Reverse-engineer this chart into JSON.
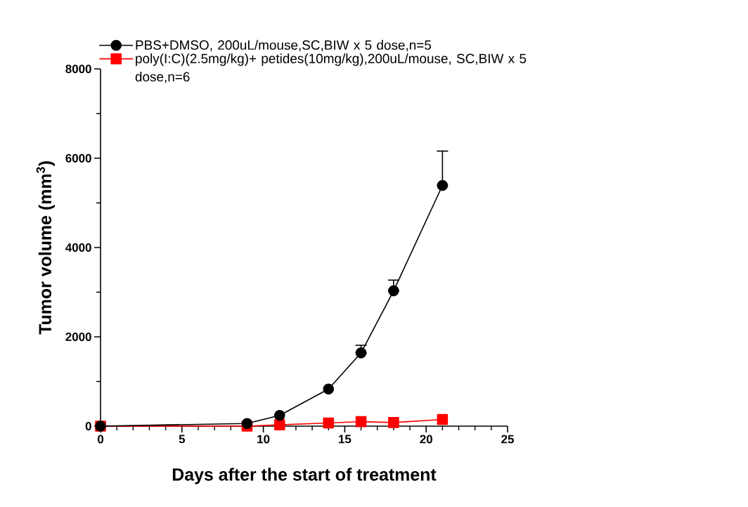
{
  "chart_data": {
    "type": "line",
    "xlabel": "Days after the start of treatment",
    "ylabel": "Tumor volume (mm$^{3}$)",
    "x": [
      0,
      9,
      11,
      14,
      16,
      18,
      21
    ],
    "series": [
      {
        "name": "PBS+DMSO, 200uL/mouse,SC,BIW x 5 dose,n=5",
        "color": "#000000",
        "marker": "circle",
        "values": [
          0,
          60,
          240,
          830,
          1640,
          3030,
          5390
        ],
        "errors": [
          null,
          null,
          null,
          null,
          [
            1640,
            1810
          ],
          [
            3030,
            3270
          ],
          [
            5390,
            6160
          ]
        ]
      },
      {
        "name": "poly(I:C)(2.5mg/kg)+ petides(10mg/kg),200uL/mouse, SC,BIW x 5 dose,n=6",
        "color": "#ff0000",
        "marker": "square",
        "values": [
          0,
          0,
          30,
          70,
          100,
          80,
          150
        ]
      }
    ],
    "xlim": [
      0,
      25
    ],
    "xticks": [
      0,
      5,
      10,
      15,
      20,
      25
    ],
    "ylim": [
      0,
      8000
    ],
    "yticks": [
      0,
      2000,
      4000,
      6000,
      8000
    ],
    "grid": false,
    "legend": "top",
    "line_style": "solid"
  }
}
